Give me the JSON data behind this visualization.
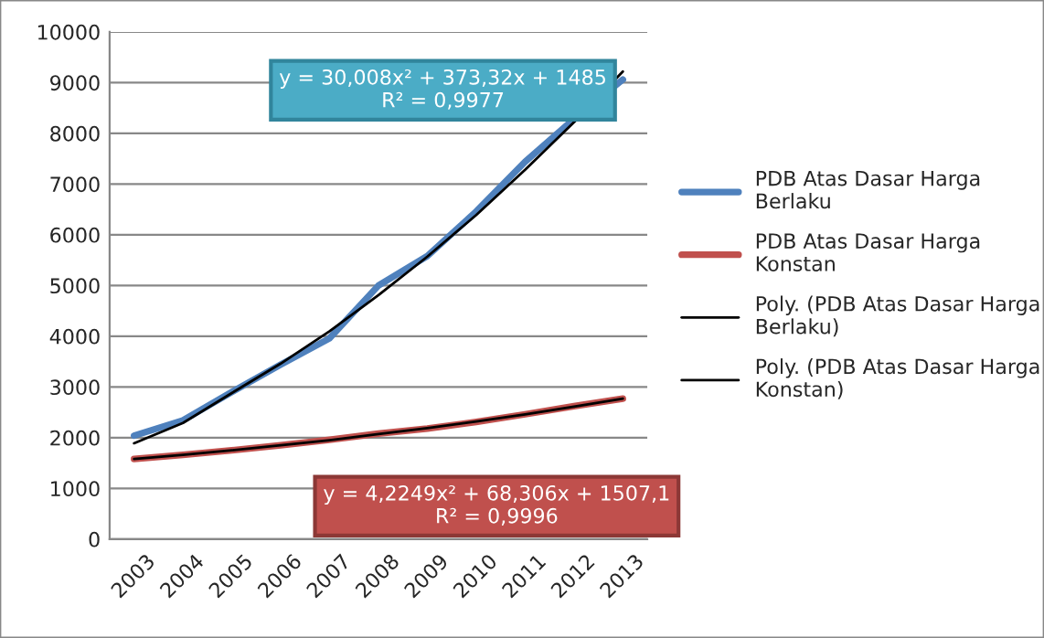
{
  "chart_data": {
    "type": "line",
    "categories": [
      "2003",
      "2004",
      "2005",
      "2006",
      "2007",
      "2008",
      "2009",
      "2010",
      "2011",
      "2012",
      "2013"
    ],
    "series": [
      {
        "name": "PDB Atas Dasar Harga Berlaku",
        "color": "#4f81bd",
        "values": [
          2040,
          2340,
          2900,
          3440,
          3960,
          5000,
          5580,
          6460,
          7440,
          8280,
          9060
        ]
      },
      {
        "name": "PDB Atas Dasar Harga Konstan",
        "color": "#c0504d",
        "values": [
          1580,
          1660,
          1750,
          1850,
          1960,
          2080,
          2180,
          2310,
          2460,
          2620,
          2770
        ]
      },
      {
        "name": "Poly. (PDB Atas Dasar Harga Berlaku)",
        "color": "#000000",
        "values": [
          1890,
          2290,
          2880,
          3460,
          4100,
          4810,
          5570,
          6390,
          7280,
          8220,
          9220
        ]
      },
      {
        "name": "Poly. (PDB Atas Dasar Harga Konstan)",
        "color": "#000000",
        "values": [
          1580,
          1660,
          1750,
          1850,
          1950,
          2070,
          2190,
          2320,
          2460,
          2610,
          2770
        ]
      }
    ],
    "ylim": [
      0,
      10000
    ],
    "yticks": [
      0,
      1000,
      2000,
      3000,
      4000,
      5000,
      6000,
      7000,
      8000,
      9000,
      10000
    ],
    "grid": "y",
    "legend": "right",
    "marker": "none",
    "line_style": "solid",
    "annotations": [
      "y = 30,008x² + 373,32x + 1485\nR² = 0,9977",
      "y = 4,2249x² + 68,306x + 1507,1\nR² = 0,9996"
    ]
  }
}
